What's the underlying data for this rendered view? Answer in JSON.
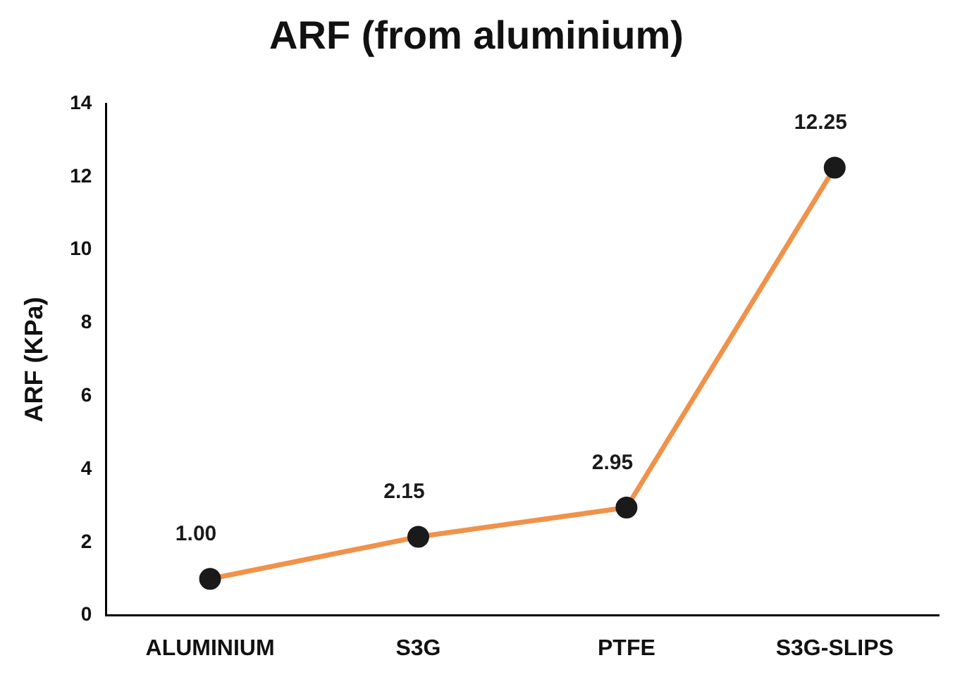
{
  "chart_data": {
    "type": "line",
    "title": "ARF (from aluminium)",
    "ylabel": "ARF (KPa)",
    "categories": [
      "ALUMINIUM",
      "S3G",
      "PTFE",
      "S3G-SLIPS"
    ],
    "series": [
      {
        "color": "#f0924a",
        "values": [
          1.0,
          2.15,
          2.95,
          12.25
        ],
        "value_labels": [
          "1.00",
          "2.15",
          "2.95",
          "12.25"
        ]
      }
    ],
    "ylim": [
      0,
      14
    ],
    "yticks": [
      0,
      2,
      4,
      6,
      8,
      10,
      12,
      14
    ],
    "grid": false,
    "legend": false,
    "marker": "circle",
    "line_style": "solid"
  }
}
